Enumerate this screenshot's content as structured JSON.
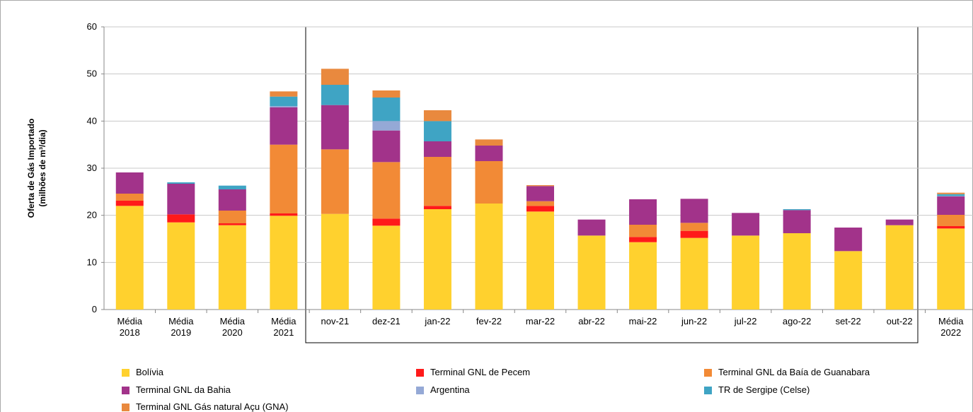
{
  "chart_data": {
    "type": "stacked_bar",
    "ylabel": [
      "Oferta de Gás Importado",
      "(milhões de m³/dia)"
    ],
    "categories": [
      "Média 2018",
      "Média 2019",
      "Média 2020",
      "Média 2021",
      "nov-21",
      "dez-21",
      "jan-22",
      "fev-22",
      "mar-22",
      "abr-22",
      "mai-22",
      "jun-22",
      "jul-22",
      "ago-22",
      "set-22",
      "out-22",
      "Média 2022"
    ],
    "series": [
      {
        "name": "Bolívia",
        "color": "#FFD12E",
        "values": [
          22,
          18.5,
          17.9,
          19.9,
          20.3,
          17.8,
          21.3,
          22.5,
          20.8,
          15.7,
          14.3,
          15.2,
          15.7,
          16.2,
          12.4,
          17.9,
          17.2
        ]
      },
      {
        "name": "Terminal GNL de Pecem",
        "color": "#FF1A1A",
        "values": [
          1.1,
          1.7,
          0.4,
          0.5,
          0,
          1.5,
          0.7,
          0,
          1.2,
          0,
          1.1,
          1.5,
          0,
          0,
          0,
          0,
          0.5
        ]
      },
      {
        "name": "Terminal GNL da Baía de Guanabara",
        "color": "#F28A36",
        "values": [
          1.5,
          0,
          2.7,
          14.6,
          13.7,
          12,
          10.4,
          9,
          1,
          0,
          2.6,
          1.7,
          0,
          0,
          0,
          0,
          2.4
        ]
      },
      {
        "name": "Terminal GNL da Bahia",
        "color": "#A2338A",
        "values": [
          4.5,
          6.5,
          4.5,
          7.9,
          9.4,
          6.7,
          3.3,
          3.3,
          3.2,
          3.4,
          5.4,
          5.1,
          4.8,
          4.9,
          5,
          1.2,
          3.9
        ]
      },
      {
        "name": "Argentina",
        "color": "#95A9D6",
        "values": [
          0,
          0,
          0,
          0.3,
          0,
          2,
          0,
          0,
          0,
          0,
          0,
          0,
          0,
          0,
          0,
          0,
          0.1
        ]
      },
      {
        "name": "TR de Sergipe (Celse)",
        "color": "#3FA4C4",
        "values": [
          0,
          0.3,
          0.8,
          2,
          4.3,
          5,
          4.3,
          0,
          0,
          0,
          0,
          0,
          0,
          0.2,
          0,
          0,
          0.4
        ]
      },
      {
        "name": "Terminal GNL Gás natural Açu (GNA)",
        "color": "#E9893E",
        "values": [
          0,
          0,
          0,
          1.1,
          3.4,
          1.5,
          2.3,
          1.3,
          0.2,
          0,
          0,
          0,
          0,
          0,
          0,
          0,
          0.3
        ]
      }
    ],
    "ylim": [
      0,
      60
    ],
    "yticks": [
      0,
      10,
      20,
      30,
      40,
      50,
      60
    ],
    "grid": true
  }
}
